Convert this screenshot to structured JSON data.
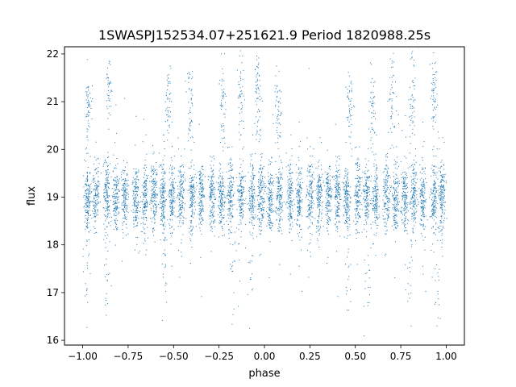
{
  "chart_data": {
    "type": "scatter",
    "title": "1SWASPJ152534.07+251621.9 Period 1820988.25s",
    "xlabel": "phase",
    "ylabel": "flux",
    "xlim": [
      -1.1,
      1.1
    ],
    "ylim": [
      15.9,
      22.15
    ],
    "x_ticks": [
      -1.0,
      -0.75,
      -0.5,
      -0.25,
      0.0,
      0.25,
      0.5,
      0.75,
      1.0
    ],
    "x_tick_labels": [
      "−1.00",
      "−0.75",
      "−0.50",
      "−0.25",
      "0.00",
      "0.25",
      "0.50",
      "0.75",
      "1.00"
    ],
    "y_ticks": [
      16,
      17,
      18,
      19,
      20,
      21,
      22
    ],
    "y_tick_labels": [
      "16",
      "17",
      "18",
      "19",
      "20",
      "21",
      "22"
    ],
    "grid": false,
    "legend": "none",
    "point_color": "#1f77b4",
    "series": [
      {
        "clusters": [
          {
            "x": -0.975,
            "y_center": 19.0,
            "y_spread": 0.35,
            "weight": 1.0
          },
          {
            "x": -0.93,
            "y_center": 19.0,
            "y_spread": 0.35,
            "weight": 0.8
          },
          {
            "x": -0.87,
            "y_center": 19.0,
            "y_spread": 0.35,
            "weight": 0.9
          },
          {
            "x": -0.82,
            "y_center": 19.0,
            "y_spread": 0.35,
            "weight": 0.9
          },
          {
            "x": -0.77,
            "y_center": 19.0,
            "y_spread": 0.35,
            "weight": 0.9
          },
          {
            "x": -0.71,
            "y_center": 19.0,
            "y_spread": 0.35,
            "weight": 0.9
          },
          {
            "x": -0.66,
            "y_center": 19.0,
            "y_spread": 0.35,
            "weight": 0.9
          },
          {
            "x": -0.61,
            "y_center": 19.0,
            "y_spread": 0.35,
            "weight": 0.9
          },
          {
            "x": -0.56,
            "y_center": 19.0,
            "y_spread": 0.35,
            "weight": 1.0
          },
          {
            "x": -0.51,
            "y_center": 19.0,
            "y_spread": 0.35,
            "weight": 0.9
          },
          {
            "x": -0.46,
            "y_center": 19.0,
            "y_spread": 0.35,
            "weight": 0.9
          },
          {
            "x": -0.4,
            "y_center": 19.0,
            "y_spread": 0.35,
            "weight": 0.9
          },
          {
            "x": -0.35,
            "y_center": 19.0,
            "y_spread": 0.35,
            "weight": 0.9
          },
          {
            "x": -0.29,
            "y_center": 19.0,
            "y_spread": 0.35,
            "weight": 0.9
          },
          {
            "x": -0.24,
            "y_center": 19.0,
            "y_spread": 0.35,
            "weight": 0.9
          },
          {
            "x": -0.19,
            "y_center": 19.0,
            "y_spread": 0.35,
            "weight": 0.9
          },
          {
            "x": -0.13,
            "y_center": 19.0,
            "y_spread": 0.35,
            "weight": 0.9
          },
          {
            "x": -0.07,
            "y_center": 19.0,
            "y_spread": 0.35,
            "weight": 0.9
          },
          {
            "x": -0.02,
            "y_center": 19.0,
            "y_spread": 0.35,
            "weight": 1.0
          },
          {
            "x": 0.03,
            "y_center": 19.0,
            "y_spread": 0.35,
            "weight": 0.9
          },
          {
            "x": 0.08,
            "y_center": 19.0,
            "y_spread": 0.35,
            "weight": 0.9
          },
          {
            "x": 0.14,
            "y_center": 19.0,
            "y_spread": 0.35,
            "weight": 0.9
          },
          {
            "x": 0.19,
            "y_center": 19.0,
            "y_spread": 0.35,
            "weight": 0.9
          },
          {
            "x": 0.25,
            "y_center": 19.0,
            "y_spread": 0.35,
            "weight": 0.9
          },
          {
            "x": 0.3,
            "y_center": 19.0,
            "y_spread": 0.35,
            "weight": 0.9
          },
          {
            "x": 0.35,
            "y_center": 19.0,
            "y_spread": 0.35,
            "weight": 0.9
          },
          {
            "x": 0.4,
            "y_center": 19.0,
            "y_spread": 0.35,
            "weight": 0.9
          },
          {
            "x": 0.45,
            "y_center": 19.0,
            "y_spread": 0.35,
            "weight": 1.0
          },
          {
            "x": 0.51,
            "y_center": 19.0,
            "y_spread": 0.35,
            "weight": 0.9
          },
          {
            "x": 0.56,
            "y_center": 19.0,
            "y_spread": 0.35,
            "weight": 0.9
          },
          {
            "x": 0.61,
            "y_center": 19.0,
            "y_spread": 0.35,
            "weight": 0.9
          },
          {
            "x": 0.67,
            "y_center": 19.0,
            "y_spread": 0.35,
            "weight": 0.9
          },
          {
            "x": 0.72,
            "y_center": 19.0,
            "y_spread": 0.35,
            "weight": 0.9
          },
          {
            "x": 0.77,
            "y_center": 19.0,
            "y_spread": 0.35,
            "weight": 0.9
          },
          {
            "x": 0.82,
            "y_center": 19.0,
            "y_spread": 0.35,
            "weight": 0.9
          },
          {
            "x": 0.87,
            "y_center": 19.0,
            "y_spread": 0.35,
            "weight": 0.9
          },
          {
            "x": 0.93,
            "y_center": 19.0,
            "y_spread": 0.35,
            "weight": 0.9
          },
          {
            "x": 0.975,
            "y_center": 19.0,
            "y_spread": 0.35,
            "weight": 1.0
          },
          {
            "x": -0.97,
            "y_center": 20.9,
            "y_spread": 0.35,
            "weight": 0.35
          },
          {
            "x": -0.86,
            "y_center": 21.2,
            "y_spread": 0.35,
            "weight": 0.25
          },
          {
            "x": -0.53,
            "y_center": 21.0,
            "y_spread": 0.4,
            "weight": 0.3
          },
          {
            "x": -0.41,
            "y_center": 20.9,
            "y_spread": 0.45,
            "weight": 0.3
          },
          {
            "x": -0.23,
            "y_center": 20.9,
            "y_spread": 0.45,
            "weight": 0.3
          },
          {
            "x": -0.13,
            "y_center": 21.1,
            "y_spread": 0.45,
            "weight": 0.3
          },
          {
            "x": -0.04,
            "y_center": 21.1,
            "y_spread": 0.5,
            "weight": 0.4
          },
          {
            "x": 0.07,
            "y_center": 20.9,
            "y_spread": 0.5,
            "weight": 0.3
          },
          {
            "x": 0.47,
            "y_center": 20.9,
            "y_spread": 0.45,
            "weight": 0.3
          },
          {
            "x": 0.59,
            "y_center": 20.9,
            "y_spread": 0.45,
            "weight": 0.3
          },
          {
            "x": 0.7,
            "y_center": 21.0,
            "y_spread": 0.45,
            "weight": 0.3
          },
          {
            "x": 0.81,
            "y_center": 21.0,
            "y_spread": 0.45,
            "weight": 0.3
          },
          {
            "x": 0.93,
            "y_center": 21.1,
            "y_spread": 0.45,
            "weight": 0.35
          },
          {
            "x": -0.98,
            "y_center": 17.5,
            "y_spread": 0.6,
            "weight": 0.12
          },
          {
            "x": -0.87,
            "y_center": 17.2,
            "y_spread": 0.6,
            "weight": 0.1
          },
          {
            "x": -0.55,
            "y_center": 17.4,
            "y_spread": 0.6,
            "weight": 0.12
          },
          {
            "x": -0.18,
            "y_center": 17.3,
            "y_spread": 0.6,
            "weight": 0.12
          },
          {
            "x": -0.07,
            "y_center": 17.4,
            "y_spread": 0.6,
            "weight": 0.1
          },
          {
            "x": 0.46,
            "y_center": 17.3,
            "y_spread": 0.6,
            "weight": 0.12
          },
          {
            "x": 0.57,
            "y_center": 17.2,
            "y_spread": 0.6,
            "weight": 0.1
          },
          {
            "x": 0.8,
            "y_center": 17.3,
            "y_spread": 0.6,
            "weight": 0.12
          },
          {
            "x": 0.95,
            "y_center": 17.2,
            "y_spread": 0.6,
            "weight": 0.12
          }
        ]
      }
    ]
  }
}
